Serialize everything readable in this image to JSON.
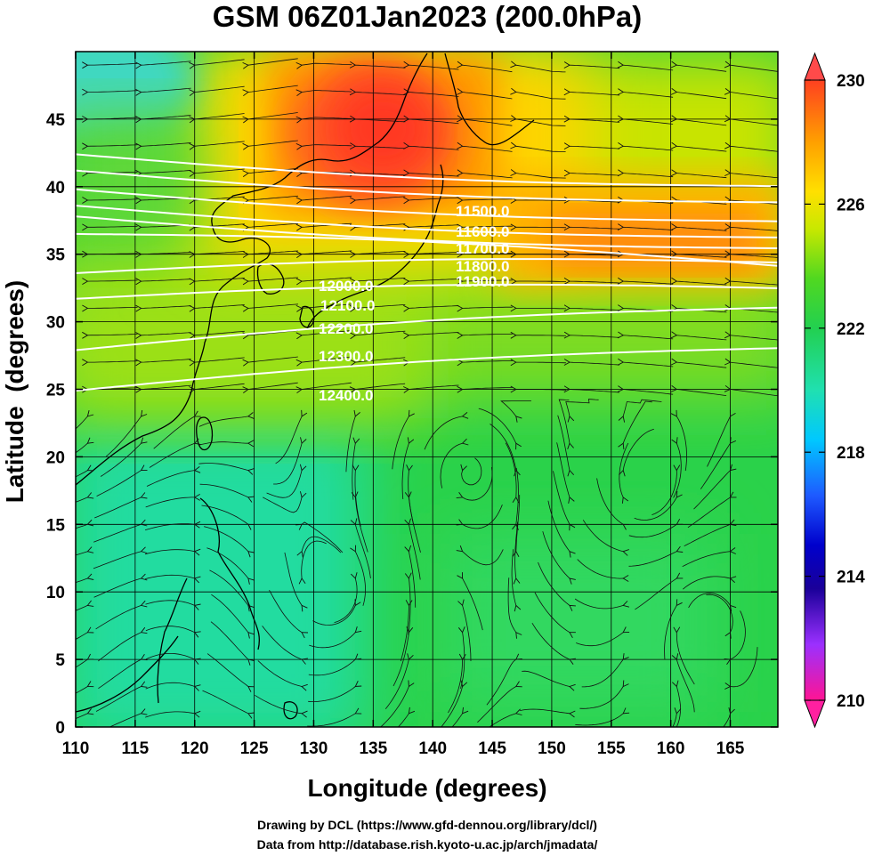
{
  "title": "GSM 06Z01Jan2023 (200.0hPa)",
  "credits": [
    "Drawing by DCL (https://www.gfd-dennou.org/library/dcl/)",
    "Data from http://database.rish.kyoto-u.ac.jp/arch/jmadata/"
  ],
  "chart_data": {
    "type": "heatmap",
    "title": "GSM 06Z01Jan2023 (200.0hPa)",
    "xlabel": "Longitude (degrees)",
    "ylabel": "Latitude  (degrees)",
    "xlim": [
      110,
      169
    ],
    "ylim": [
      0,
      50
    ],
    "xticks": [
      110,
      115,
      120,
      125,
      130,
      135,
      140,
      145,
      150,
      155,
      160,
      165
    ],
    "yticks": [
      0,
      5,
      10,
      15,
      20,
      25,
      30,
      35,
      40,
      45
    ],
    "grid": true,
    "colorbar": {
      "range": [
        210,
        230
      ],
      "ticks": [
        210,
        214,
        218,
        222,
        226,
        230
      ],
      "colors": [
        "#ff1493",
        "#9b30ff",
        "#0000aa",
        "#1e5aff",
        "#00c8ff",
        "#20e0c0",
        "#22d050",
        "#3fd020",
        "#b4e000",
        "#ffe000",
        "#ffa000",
        "#ff4020"
      ]
    },
    "contours": [
      {
        "label": "11500.0",
        "lat_at_140E": 41.2
      },
      {
        "label": "11600.0",
        "lat_at_140E": 40.0
      },
      {
        "label": "11700.0",
        "lat_at_140E": 38.6
      },
      {
        "label": "11800.0",
        "lat_at_140E": 37.4
      },
      {
        "label": "11900.0",
        "lat_at_140E": 36.6
      },
      {
        "label": "12000.0",
        "lat_at_140E": 35.3
      },
      {
        "label": "12100.0",
        "lat_at_140E": 34.0
      },
      {
        "label": "12200.0",
        "lat_at_140E": 32.1
      },
      {
        "label": "12300.0",
        "lat_at_140E": 29.5
      },
      {
        "label": "12400.0",
        "lat_at_140E": 26.5
      }
    ]
  }
}
